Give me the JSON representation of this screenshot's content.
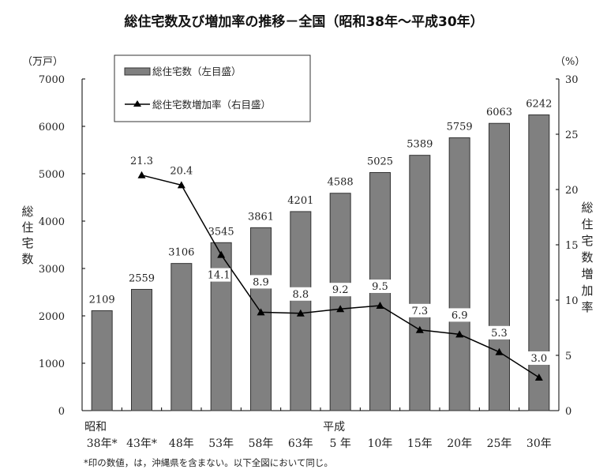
{
  "chart_data": {
    "type": "bar+line",
    "title": "総住宅数及び増加率の推移－全国（昭和38年～平成30年）",
    "categories": [
      "38年*",
      "43年*",
      "48年",
      "53年",
      "58年",
      "63年",
      "5 年",
      "10年",
      "15年",
      "20年",
      "25年",
      "30年"
    ],
    "era_labels": [
      {
        "index": 0,
        "label": "昭和"
      },
      {
        "index": 6,
        "label": "平成"
      }
    ],
    "series": [
      {
        "name": "総住宅数（左目盛）",
        "type": "bar",
        "values": [
          2109,
          2559,
          3106,
          3545,
          3861,
          4201,
          4588,
          5025,
          5389,
          5759,
          6063,
          6242
        ],
        "color": "#808080"
      },
      {
        "name": "総住宅数増加率（右目盛）",
        "type": "line",
        "values": [
          null,
          21.3,
          20.4,
          14.1,
          8.9,
          8.8,
          9.2,
          9.5,
          7.3,
          6.9,
          5.3,
          3.0
        ],
        "labels": [
          "",
          "21.3",
          "20.4",
          "14.1",
          "8.9",
          "8.8",
          "9.2",
          "9.5",
          "7.3",
          "6.9",
          "5.3",
          "3.0"
        ],
        "color": "#000000",
        "marker": "triangle"
      }
    ],
    "y_left": {
      "label": "総住宅数",
      "unit": "（万戸）",
      "range": [
        0,
        7000
      ],
      "ticks": [
        "0",
        "1000",
        "2000",
        "3000",
        "4000",
        "5000",
        "6000",
        "7000"
      ]
    },
    "y_right": {
      "label": "総住宅数増加率",
      "unit": "（%）",
      "range": [
        0,
        30
      ],
      "ticks": [
        "0",
        "5",
        "10",
        "15",
        "20",
        "25",
        "30"
      ]
    },
    "legend": "top-left",
    "grid": false,
    "footnote": "*印の数値，は，沖縄県を含まない。以下全図において同じ。"
  }
}
